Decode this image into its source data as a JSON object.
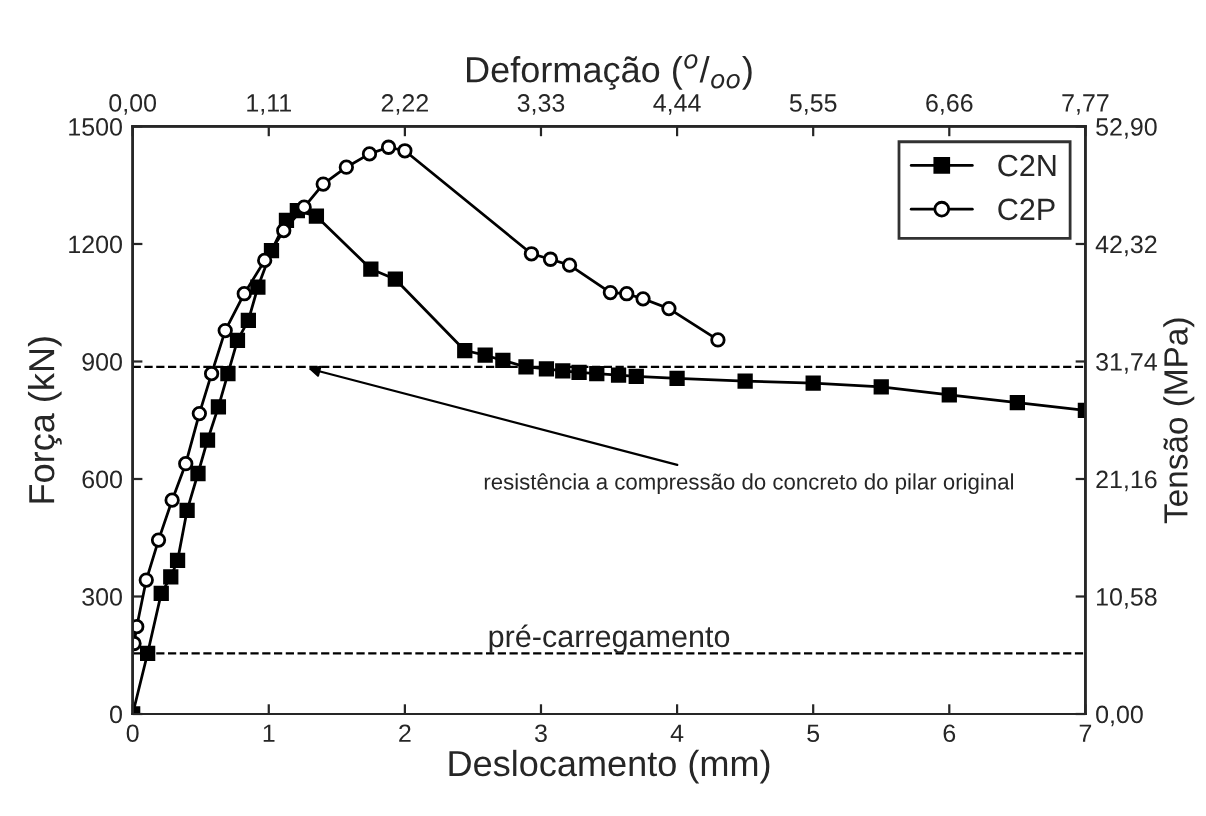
{
  "chart_data": {
    "type": "line",
    "xlabel": "Deslocamento (mm)",
    "ylabel": "Força (kN)",
    "y2label": "Tensão (MPa)",
    "x2label": "Deformação ($^{o}$/$_{oo}$)",
    "xlim": [
      0,
      7
    ],
    "xticks": [
      0,
      1,
      2,
      3,
      4,
      5,
      6,
      7
    ],
    "ylim": [
      0,
      1500
    ],
    "yticks": [
      0,
      300,
      600,
      900,
      1200,
      1500
    ],
    "x2lim": [
      0,
      7.77
    ],
    "x2ticks": [
      {
        "value": 0,
        "label": "0,00"
      },
      {
        "value": 1.11,
        "label": "1,11"
      },
      {
        "value": 2.22,
        "label": "2,22"
      },
      {
        "value": 3.33,
        "label": "3,33"
      },
      {
        "value": 4.44,
        "label": "4,44"
      },
      {
        "value": 5.55,
        "label": "5,55"
      },
      {
        "value": 6.66,
        "label": "6,66"
      },
      {
        "value": 7.77,
        "label": "7,77"
      }
    ],
    "y2lim": [
      0,
      52.9
    ],
    "y2ticks": [
      {
        "value": 0,
        "label": "0,00"
      },
      {
        "value": 10.58,
        "label": "10,58"
      },
      {
        "value": 21.16,
        "label": "21,16"
      },
      {
        "value": 31.74,
        "label": "31,74"
      },
      {
        "value": 42.32,
        "label": "42,32"
      },
      {
        "value": 52.9,
        "label": "52,90"
      }
    ],
    "grid": false,
    "legend": "top right",
    "series": [
      {
        "name": "C2N",
        "color": "#000000",
        "marker": "square",
        "x": [
          0,
          0.11,
          0.21,
          0.28,
          0.33,
          0.4,
          0.48,
          0.55,
          0.63,
          0.7,
          0.77,
          0.85,
          0.92,
          1.02,
          1.13,
          1.21,
          1.35,
          1.75,
          1.93,
          2.44,
          2.59,
          2.72,
          2.89,
          3.04,
          3.16,
          3.28,
          3.41,
          3.57,
          3.7,
          4.0,
          4.5,
          5.0,
          5.5,
          6.0,
          6.5,
          7.0
        ],
        "values": [
          0,
          155,
          308,
          350,
          392,
          520,
          614,
          699,
          784,
          869,
          954,
          1005,
          1090,
          1183,
          1260,
          1285,
          1271,
          1136,
          1110,
          928,
          916,
          903,
          886,
          881,
          876,
          872,
          869,
          865,
          862,
          857,
          850,
          845,
          835,
          815,
          795,
          775
        ]
      },
      {
        "name": "C2P",
        "color": "#000000",
        "marker": "circle",
        "x": [
          0.01,
          0.03,
          0.1,
          0.19,
          0.29,
          0.39,
          0.49,
          0.58,
          0.68,
          0.82,
          0.97,
          1.11,
          1.26,
          1.4,
          1.57,
          1.74,
          1.88,
          2.0,
          2.93,
          3.07,
          3.21,
          3.51,
          3.63,
          3.75,
          3.94,
          4.3
        ],
        "values": [
          180,
          223,
          342,
          444,
          546,
          639,
          767,
          869,
          979,
          1073,
          1158,
          1234,
          1294,
          1353,
          1396,
          1430,
          1447,
          1438,
          1175,
          1161,
          1146,
          1076,
          1073,
          1060,
          1035,
          955
        ]
      }
    ],
    "ref_lines": [
      {
        "axis": "y",
        "value": 886,
        "line_style": "dashed",
        "color": "#000000"
      },
      {
        "axis": "y",
        "value": 155,
        "line_style": "dashed",
        "color": "#000000",
        "label": "pré-carregamento"
      }
    ],
    "annotations": [
      {
        "text": "resistência a compressão do concreto do pilar original",
        "x": 1.25,
        "y": 886
      }
    ]
  }
}
